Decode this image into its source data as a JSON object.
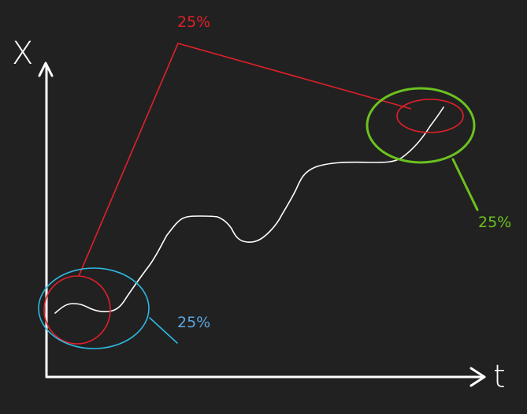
{
  "colors": {
    "background": "#212121",
    "axis": "#ffffff",
    "curve": "#ffffff",
    "red": "#e0202a",
    "green": "#6cc11f",
    "blue": "#2fb8e0",
    "blue_label": "#5ba6e0"
  },
  "axes": {
    "y_label": "X",
    "x_label": "t"
  },
  "annotations": {
    "red_pct": "25%",
    "green_pct": "25%",
    "blue_pct": "25%"
  }
}
